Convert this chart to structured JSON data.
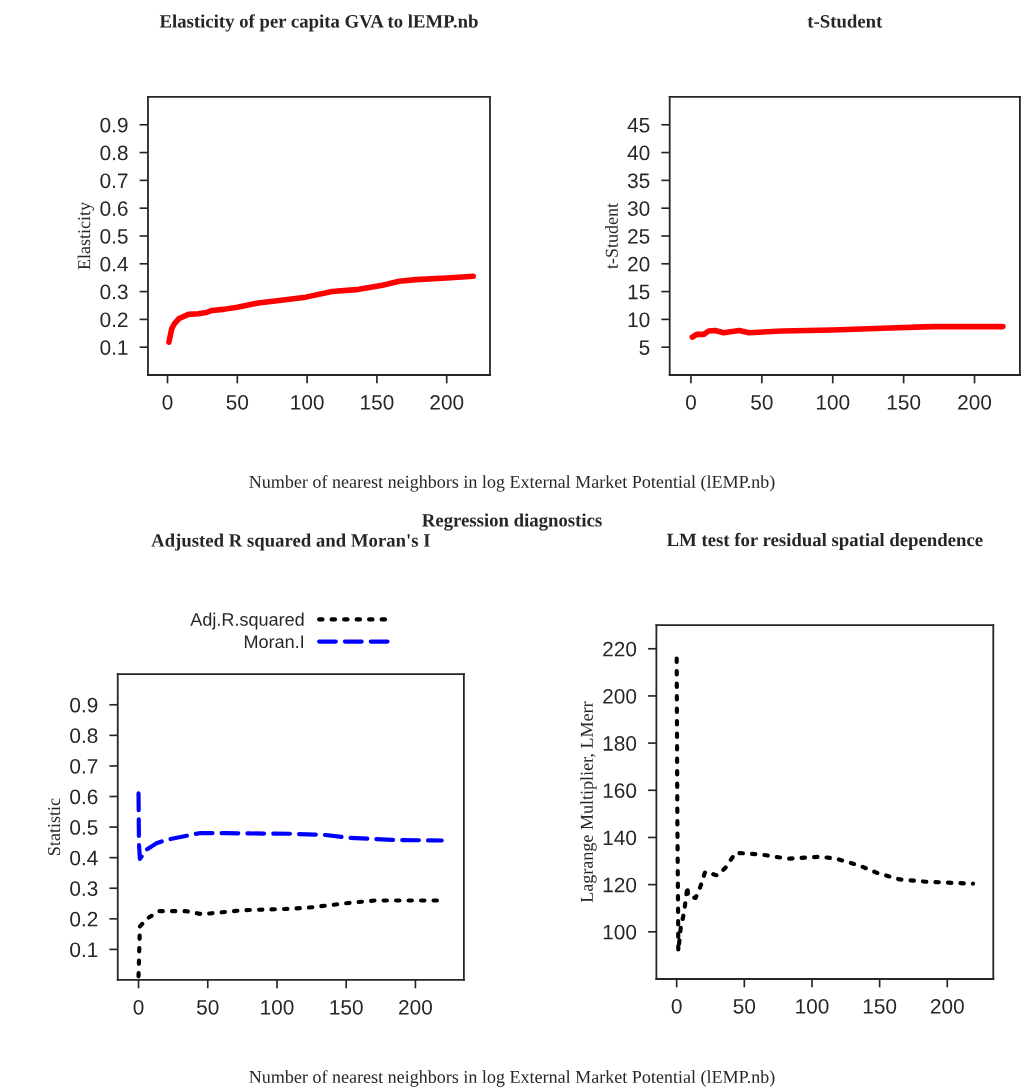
{
  "chart_data": [
    {
      "type": "line",
      "title": "Elasticity of per capita GVA to lEMP.nb",
      "ylabel": "Elasticity",
      "xlabel": "Number of nearest neighbors in log External Market Potential (lEMP.nb)",
      "xlim": [
        -14,
        231
      ],
      "ylim": [
        0,
        1
      ],
      "xticks": [
        0,
        50,
        100,
        150,
        200
      ],
      "yticks": [
        0.1,
        0.2,
        0.3,
        0.4,
        0.5,
        0.6,
        0.7,
        0.8,
        0.9
      ],
      "series": [
        {
          "color": "#ff0000",
          "line_style": "solid",
          "x": [
            1,
            3,
            5,
            8,
            15,
            22,
            28,
            32,
            40,
            50,
            65,
            80,
            99,
            118,
            135,
            154,
            166,
            178,
            200,
            219
          ],
          "values": [
            0.118,
            0.166,
            0.185,
            0.202,
            0.218,
            0.22,
            0.225,
            0.232,
            0.236,
            0.244,
            0.259,
            0.268,
            0.28,
            0.3,
            0.307,
            0.323,
            0.337,
            0.343,
            0.349,
            0.355
          ]
        }
      ]
    },
    {
      "type": "line",
      "title": "t-Student",
      "ylabel": "t-Student",
      "xlim": [
        -15,
        232
      ],
      "ylim": [
        0,
        50
      ],
      "xticks": [
        0,
        50,
        100,
        150,
        200
      ],
      "yticks": [
        5,
        10,
        15,
        20,
        25,
        30,
        35,
        40,
        45
      ],
      "series": [
        {
          "color": "#ff0000",
          "line_style": "solid",
          "x": [
            1,
            4,
            9,
            12.5,
            17,
            23,
            34,
            41,
            64,
            100,
            135,
            170,
            220
          ],
          "values": [
            6.8,
            7.3,
            7.3,
            7.9,
            8.0,
            7.6,
            8.0,
            7.6,
            7.9,
            8.1,
            8.4,
            8.7,
            8.7
          ]
        }
      ]
    },
    {
      "type": "line",
      "title": "Adjusted R squared and Moran's I",
      "ylabel": "Statistic",
      "xlabel": "Number of nearest neighbors in log External Market Potential (lEMP.nb)",
      "annotations": [
        "Regression diagnostics"
      ],
      "legend": "top",
      "xlim": [
        -15,
        235
      ],
      "ylim": [
        0,
        1
      ],
      "xticks": [
        0,
        50,
        100,
        150,
        200
      ],
      "yticks": [
        0.1,
        0.2,
        0.3,
        0.4,
        0.5,
        0.6,
        0.7,
        0.8,
        0.9
      ],
      "series": [
        {
          "name": "Adj.R.squared",
          "color": "#000000",
          "line_style": "dotted",
          "x": [
            0,
            1,
            6,
            15,
            34,
            46,
            75,
            111,
            126,
            150,
            171,
            219
          ],
          "values": [
            0.012,
            0.175,
            0.2,
            0.225,
            0.225,
            0.215,
            0.228,
            0.233,
            0.238,
            0.251,
            0.26,
            0.26
          ]
        },
        {
          "name": "Moran.I",
          "color": "#0000ff",
          "line_style": "dashed",
          "x": [
            0,
            0.3,
            1,
            5.5,
            13,
            20,
            34,
            44,
            63,
            111,
            135,
            152,
            183,
            219
          ],
          "values": [
            0.61,
            0.447,
            0.396,
            0.425,
            0.447,
            0.458,
            0.471,
            0.48,
            0.48,
            0.478,
            0.474,
            0.465,
            0.458,
            0.456
          ]
        }
      ]
    },
    {
      "type": "line",
      "title": "LM test for residual spatial dependence",
      "ylabel": "Lagrange Multiplier, LMerr",
      "xlim": [
        -15,
        234
      ],
      "ylim": [
        80,
        230
      ],
      "xticks": [
        0,
        50,
        100,
        150,
        200
      ],
      "yticks": [
        100,
        120,
        140,
        160,
        180,
        200,
        220
      ],
      "series": [
        {
          "color": "#000000",
          "line_style": "dotted",
          "x": [
            0,
            0.5,
            1,
            1.2,
            3,
            5.4,
            8,
            8.4,
            14,
            17.7,
            21,
            30,
            36,
            43.5,
            62,
            82,
            106,
            118,
            135,
            148,
            165,
            185,
            219
          ],
          "values": [
            215.8,
            147.7,
            112.3,
            91.8,
            101.7,
            108,
            119.4,
            115,
            114.4,
            119.4,
            125.4,
            123.9,
            127.1,
            133.5,
            132.8,
            131,
            131.8,
            131,
            128.1,
            125,
            122.2,
            121.2,
            120.4
          ]
        }
      ]
    }
  ]
}
